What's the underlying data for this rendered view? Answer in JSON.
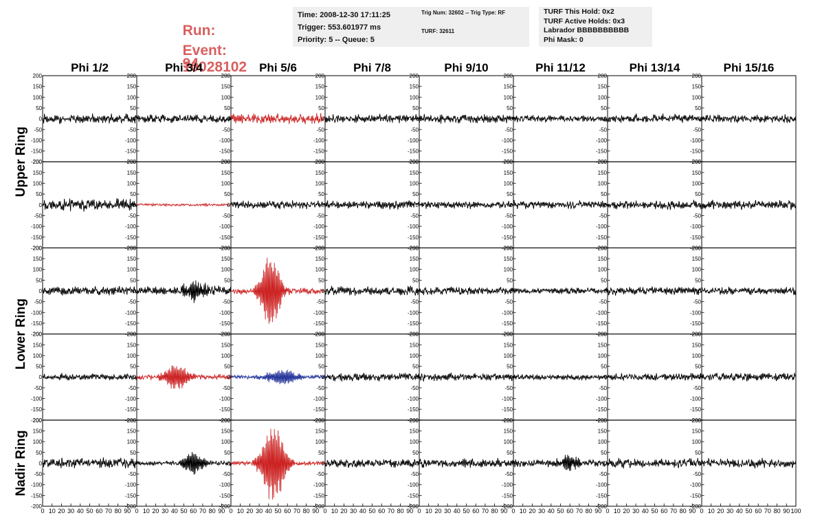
{
  "header": {
    "run_label": "Run:",
    "run_value": "94",
    "event_label": "Event:",
    "event_value": "10028102",
    "info_box_1": [
      "Time: 2008-12-30 17:11:25",
      "Trigger: 553.601977 ms",
      "Priority: 5 -- Queue: 5"
    ],
    "info_box_2": [
      "Trig Num: 32602 -- Trig Type: RF",
      "TURF: 32611"
    ],
    "info_box_3": [
      "TURF This Hold: 0x2",
      "TURF Active Holds: 0x3",
      "Labrador BBBBBBBBBB",
      "Phi Mask: 0"
    ],
    "colors": {
      "run_text": "#d95f5f",
      "box_bg": "#efefef"
    }
  },
  "chart_data": {
    "type": "line",
    "columns": [
      "Phi 1/2",
      "Phi 3/4",
      "Phi 5/6",
      "Phi 7/8",
      "Phi 9/10",
      "Phi 11/12",
      "Phi 13/14",
      "Phi 15/16"
    ],
    "ring_labels": [
      {
        "label": "Upper Ring",
        "rows": [
          0,
          1
        ]
      },
      {
        "label": "Lower Ring",
        "rows": [
          2,
          3
        ]
      },
      {
        "label": "Nadir Ring",
        "rows": [
          4
        ]
      }
    ],
    "xlim": [
      0,
      100
    ],
    "ylim": [
      -200,
      200
    ],
    "y_ticks": [
      -200,
      -150,
      -100,
      -50,
      0,
      50,
      100,
      150,
      200
    ],
    "x_ticks": [
      0,
      10,
      20,
      30,
      40,
      50,
      60,
      70,
      80,
      90,
      100
    ],
    "colors": {
      "normal": "#000000",
      "triggered": "#cc2222",
      "hpol": "#223399"
    },
    "panels": [
      [
        {
          "amp": 22,
          "color": "normal"
        },
        {
          "amp": 20,
          "color": "normal"
        },
        {
          "amp": 25,
          "color": "triggered"
        },
        {
          "amp": 20,
          "color": "normal"
        },
        {
          "amp": 20,
          "color": "normal"
        },
        {
          "amp": 16,
          "color": "normal"
        },
        {
          "amp": 22,
          "color": "normal"
        },
        {
          "amp": 20,
          "color": "normal"
        }
      ],
      [
        {
          "amp": 28,
          "color": "normal"
        },
        {
          "amp": 6,
          "color": "triggered"
        },
        {
          "amp": 20,
          "color": "normal"
        },
        {
          "amp": 20,
          "color": "normal"
        },
        {
          "amp": 18,
          "color": "normal"
        },
        {
          "amp": 20,
          "color": "normal"
        },
        {
          "amp": 20,
          "color": "normal"
        },
        {
          "amp": 22,
          "color": "normal"
        }
      ],
      [
        {
          "amp": 22,
          "color": "normal"
        },
        {
          "amp": 22,
          "color": "normal",
          "pulse": {
            "center": 62,
            "width": 14,
            "amp": 45
          }
        },
        {
          "amp": 15,
          "color": "triggered",
          "pulse": {
            "center": 42,
            "width": 12,
            "amp": 185
          }
        },
        {
          "amp": 22,
          "color": "normal"
        },
        {
          "amp": 18,
          "color": "normal"
        },
        {
          "amp": 15,
          "color": "normal"
        },
        {
          "amp": 20,
          "color": "normal"
        },
        {
          "amp": 18,
          "color": "normal"
        }
      ],
      [
        {
          "amp": 16,
          "color": "normal"
        },
        {
          "amp": 12,
          "color": "triggered",
          "pulse": {
            "center": 42,
            "width": 15,
            "amp": 65
          }
        },
        {
          "amp": 10,
          "color": "hpol",
          "pulse": {
            "center": 55,
            "width": 20,
            "amp": 35
          }
        },
        {
          "amp": 20,
          "color": "normal"
        },
        {
          "amp": 20,
          "color": "normal"
        },
        {
          "amp": 14,
          "color": "normal"
        },
        {
          "amp": 18,
          "color": "normal"
        },
        {
          "amp": 20,
          "color": "normal"
        }
      ],
      [
        {
          "amp": 24,
          "color": "normal"
        },
        {
          "amp": 12,
          "color": "normal",
          "pulse": {
            "center": 60,
            "width": 12,
            "amp": 55
          }
        },
        {
          "amp": 10,
          "color": "triggered",
          "pulse": {
            "center": 45,
            "width": 14,
            "amp": 190
          }
        },
        {
          "amp": 22,
          "color": "normal"
        },
        {
          "amp": 22,
          "color": "normal"
        },
        {
          "amp": 18,
          "color": "normal",
          "pulse": {
            "center": 60,
            "width": 12,
            "amp": 35
          }
        },
        {
          "amp": 24,
          "color": "normal"
        },
        {
          "amp": 22,
          "color": "normal"
        }
      ]
    ]
  }
}
